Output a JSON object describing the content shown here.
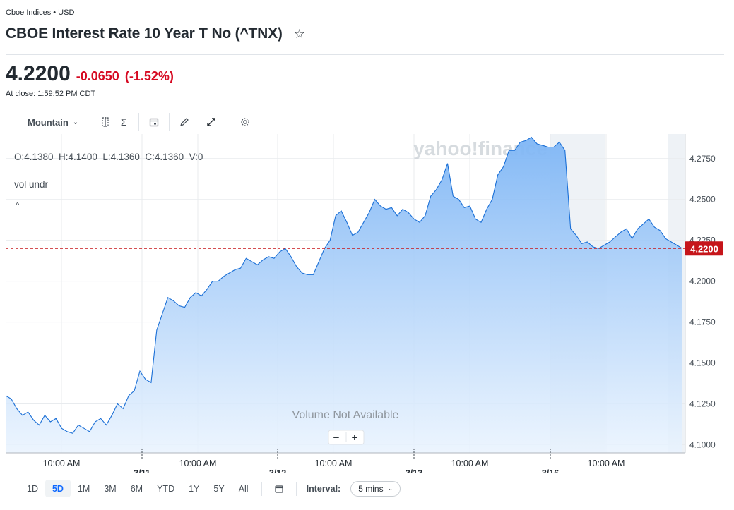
{
  "header": {
    "exchange": "Cboe Indices • USD",
    "title": "CBOE Interest Rate 10 Year T No (^TNX)",
    "star_icon": "star-outline-icon"
  },
  "quote": {
    "price": "4.2200",
    "change": "-0.0650",
    "change_pct": "(-1.52%)",
    "close_time": "At close: 1:59:52 PM CDT",
    "down_color": "#d60a22"
  },
  "toolbar": {
    "chart_type": "Mountain",
    "icons": [
      "compare-icon",
      "indicators-sigma-icon",
      "events-calendar-icon",
      "draw-pencil-icon",
      "expand-icon",
      "settings-gear-icon"
    ]
  },
  "chart": {
    "ohlc": "O:4.1380  H:4.1400  L:4.1360  C:4.1360  V:0",
    "vol_label": "vol undr",
    "watermark": "yahoo!finance",
    "volume_msg": "Volume Not Available",
    "zoom_out": "−",
    "zoom_in": "+",
    "current_label": "4.2200",
    "line_color": "#1a6fd6",
    "marker_color": "#c6151a"
  },
  "chart_data": {
    "type": "area",
    "y_ticks": [
      "4.2750",
      "4.2500",
      "4.2250",
      "4.2000",
      "4.1750",
      "4.1500",
      "4.1250",
      "4.1000"
    ],
    "ylim": [
      4.095,
      4.29
    ],
    "x_ticks": [
      "10:00 AM",
      "3/11",
      "10:00 AM",
      "3/12",
      "10:00 AM",
      "3/13",
      "10:00 AM",
      "3/16",
      "10:00 AM"
    ],
    "current": 4.22,
    "series": [
      {
        "values": [
          4.13,
          4.128,
          4.122,
          4.118,
          4.12,
          4.115,
          4.112,
          4.118,
          4.114,
          4.116,
          4.11,
          4.108,
          4.107,
          4.112,
          4.11,
          4.108,
          4.114,
          4.116,
          4.112,
          4.118,
          4.125,
          4.122,
          4.13,
          4.133,
          4.145,
          4.14,
          4.138,
          4.17,
          4.18,
          4.19,
          4.188,
          4.185,
          4.184,
          4.19,
          4.193,
          4.191,
          4.195,
          4.2,
          4.2,
          4.203,
          4.205,
          4.207,
          4.208,
          4.214,
          4.212,
          4.21,
          4.213,
          4.215,
          4.214,
          4.218,
          4.22,
          4.215,
          4.209,
          4.205,
          4.204,
          4.204,
          4.212,
          4.22,
          4.225,
          4.24,
          4.243,
          4.236,
          4.228,
          4.23,
          4.236,
          4.242,
          4.25,
          4.246,
          4.244,
          4.245,
          4.24,
          4.244,
          4.242,
          4.238,
          4.236,
          4.24,
          4.252,
          4.256,
          4.262,
          4.272,
          4.252,
          4.25,
          4.245,
          4.246,
          4.238,
          4.236,
          4.244,
          4.25,
          4.265,
          4.27,
          4.28,
          4.28,
          4.285,
          4.286,
          4.288,
          4.284,
          4.283,
          4.282,
          4.282,
          4.285,
          4.28,
          4.232,
          4.228,
          4.223,
          4.224,
          4.221,
          4.22,
          4.222,
          4.224,
          4.227,
          4.23,
          4.232,
          4.226,
          4.232,
          4.235,
          4.238,
          4.233,
          4.231,
          4.226,
          4.224,
          4.222,
          4.22
        ]
      }
    ]
  },
  "range_bar": {
    "ranges": [
      "1D",
      "5D",
      "1M",
      "3M",
      "6M",
      "YTD",
      "1Y",
      "5Y",
      "All"
    ],
    "active": "5D",
    "calendar_icon": "calendar-icon",
    "interval_label": "Interval:",
    "interval_value": "5 mins"
  }
}
